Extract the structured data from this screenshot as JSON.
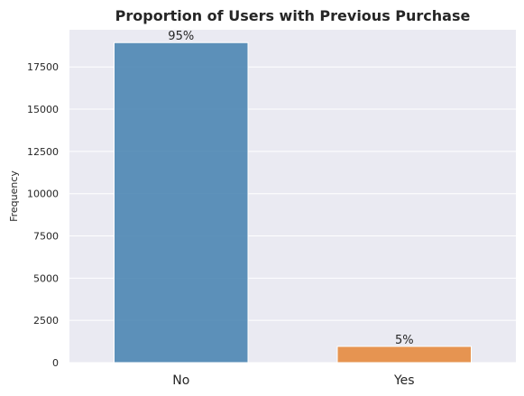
{
  "chart_data": {
    "type": "bar",
    "title": "Proportion of Users with Previous Purchase",
    "xlabel": "",
    "ylabel": "Frequency",
    "categories": [
      "No",
      "Yes"
    ],
    "values": [
      18940,
      960
    ],
    "data_labels": [
      "95%",
      "5%"
    ],
    "bar_colors": [
      "#4c86b3",
      "#e58b3f"
    ],
    "ylim": [
      0,
      19700
    ],
    "yticks": [
      0,
      2500,
      5000,
      7500,
      10000,
      12500,
      15000,
      17500
    ],
    "ytick_labels": [
      "0",
      "2500",
      "5000",
      "7500",
      "10000",
      "12500",
      "15000",
      "17500"
    ],
    "grid": true,
    "legend": false,
    "background_color": "#eaeaf2",
    "grid_color": "#ffffff",
    "text_color": "#262626"
  }
}
